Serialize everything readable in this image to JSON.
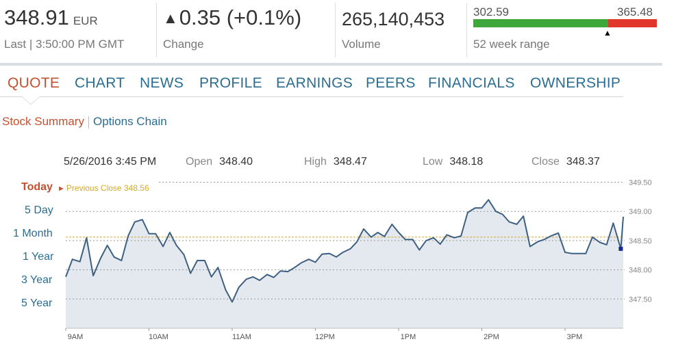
{
  "header": {
    "price": "348.91",
    "currency": "EUR",
    "last_label": "Last | 3:50:00 PM GMT",
    "change_arrow": "▲",
    "change": "0.35 (+0.1%)",
    "change_label": "Change",
    "volume": "265,140,453",
    "volume_label": "Volume",
    "week52_low": "302.59",
    "week52_high": "365.48",
    "week52_label": "52 week range",
    "week52_position": 0.735,
    "colors": {
      "up": "#4a9e2a",
      "range_low": "#3da73b",
      "range_high": "#e0362c"
    }
  },
  "tabs": [
    {
      "label": "QUOTE",
      "active": true
    },
    {
      "label": "CHART",
      "active": false
    },
    {
      "label": "NEWS",
      "active": false
    },
    {
      "label": "PROFILE",
      "active": false
    },
    {
      "label": "EARNINGS",
      "active": false
    },
    {
      "label": "PEERS",
      "active": false
    },
    {
      "label": "FINANCIALS",
      "active": false
    },
    {
      "label": "OWNERSHIP",
      "active": false
    }
  ],
  "subtabs": [
    {
      "label": "Stock Summary",
      "active": true
    },
    {
      "label": "Options Chain",
      "active": false
    }
  ],
  "ohlc": {
    "datetime": "5/26/2016 3:45 PM",
    "open_label": "Open",
    "open": "348.40",
    "high_label": "High",
    "high": "348.47",
    "low_label": "Low",
    "low": "348.18",
    "close_label": "Close",
    "close": "348.37"
  },
  "ranges": [
    {
      "label": "Today",
      "active": true
    },
    {
      "label": "5 Day",
      "active": false
    },
    {
      "label": "1 Month",
      "active": false
    },
    {
      "label": "1 Year",
      "active": false
    },
    {
      "label": "3 Year",
      "active": false
    },
    {
      "label": "5 Year",
      "active": false
    }
  ],
  "previous_close_label": "Previous Close 348.56",
  "chart_data": {
    "type": "area",
    "previous_close": 348.56,
    "ylim": [
      347.0,
      349.6
    ],
    "yticks": [
      349.5,
      349.0,
      348.5,
      348.0,
      347.5
    ],
    "ytick_labels": [
      "349.50",
      "349.00",
      "348.50",
      "348.00",
      "347.50"
    ],
    "xticks": [
      "9AM",
      "10AM",
      "11AM",
      "12PM",
      "1PM",
      "2PM",
      "3PM"
    ],
    "x_hours": [
      9.0,
      10.0,
      11.0,
      12.0,
      13.0,
      14.0,
      15.0
    ],
    "xlim": [
      9.0,
      15.7
    ],
    "grid": true,
    "colors": {
      "line": "#3d5f82",
      "fill": "#e3e9ef",
      "grid": "#999999",
      "prev_close": "#d5a82a",
      "marker": "#1a2a8a"
    },
    "series": [
      {
        "x": [
          9.0,
          9.08,
          9.17,
          9.25,
          9.33,
          9.42,
          9.5,
          9.58,
          9.67,
          9.75,
          9.83,
          9.92,
          10.0,
          10.08,
          10.17,
          10.25,
          10.33,
          10.42,
          10.5,
          10.58,
          10.67,
          10.75,
          10.83,
          10.92,
          11.0,
          11.08,
          11.17,
          11.25,
          11.33,
          11.42,
          11.5,
          11.58,
          11.67,
          11.75,
          11.83,
          11.92,
          12.0,
          12.08,
          12.17,
          12.25,
          12.33,
          12.42,
          12.5,
          12.58,
          12.67,
          12.75,
          12.83,
          12.92,
          13.0,
          13.08,
          13.17,
          13.25,
          13.33,
          13.42,
          13.5,
          13.58,
          13.67,
          13.75,
          13.83,
          13.92,
          14.0,
          14.08,
          14.17,
          14.25,
          14.33,
          14.42,
          14.5,
          14.58,
          14.67,
          14.75,
          14.83,
          14.92,
          15.0,
          15.08,
          15.17,
          15.25,
          15.33,
          15.42,
          15.5,
          15.58,
          15.67
        ],
        "y": [
          347.88,
          348.18,
          348.14,
          348.55,
          347.9,
          348.2,
          348.42,
          348.22,
          348.16,
          348.58,
          348.82,
          348.86,
          348.62,
          348.62,
          348.4,
          348.64,
          348.42,
          348.26,
          347.94,
          348.16,
          348.16,
          347.88,
          348.04,
          347.66,
          347.45,
          347.7,
          347.84,
          347.88,
          347.82,
          347.92,
          347.87,
          347.98,
          347.97,
          348.04,
          348.12,
          348.18,
          348.13,
          348.27,
          348.28,
          348.22,
          348.3,
          348.36,
          348.48,
          348.7,
          348.56,
          348.64,
          348.57,
          348.78,
          348.64,
          348.52,
          348.52,
          348.34,
          348.5,
          348.55,
          348.44,
          348.6,
          348.55,
          348.58,
          348.98,
          349.06,
          349.06,
          349.2,
          349.0,
          348.95,
          348.82,
          348.78,
          348.92,
          348.4,
          348.48,
          348.52,
          348.58,
          348.63,
          348.3,
          348.28,
          348.28,
          348.28,
          348.56,
          348.47,
          348.43,
          348.8,
          348.36
        ]
      }
    ],
    "last_value": 348.91
  }
}
